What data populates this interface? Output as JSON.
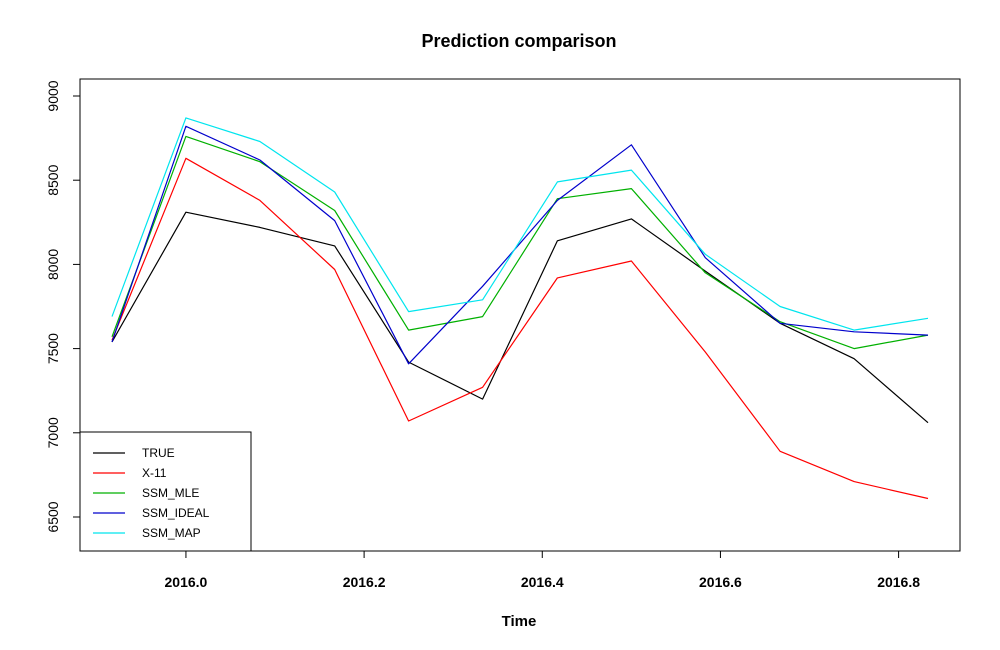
{
  "chart_data": {
    "type": "line",
    "title": "Prediction comparison",
    "xlabel": "Time",
    "ylabel": "",
    "xlim": [
      2015.917,
      2016.833
    ],
    "ylim": [
      6500,
      9000
    ],
    "x_ticks": [
      "2016.0",
      "2016.2",
      "2016.4",
      "2016.6",
      "2016.8"
    ],
    "y_ticks": [
      "6500",
      "7000",
      "7500",
      "8000",
      "8500",
      "9000"
    ],
    "grid": false,
    "legend_position": "bottom-left",
    "x": [
      2015.917,
      2016.0,
      2016.083,
      2016.167,
      2016.25,
      2016.333,
      2016.417,
      2016.5,
      2016.583,
      2016.667,
      2016.75,
      2016.833
    ],
    "series": [
      {
        "name": "TRUE",
        "color": "#000000",
        "values": [
          7540,
          8310,
          8220,
          8110,
          7420,
          7200,
          8140,
          8270,
          7960,
          7650,
          7440,
          7060
        ]
      },
      {
        "name": "X-11",
        "color": "#ff0000",
        "values": [
          7550,
          8630,
          8380,
          7970,
          7070,
          7270,
          7920,
          8020,
          7480,
          6890,
          6710,
          6610
        ]
      },
      {
        "name": "SSM_MLE",
        "color": "#00b000",
        "values": [
          7570,
          8760,
          8610,
          8320,
          7610,
          7690,
          8390,
          8450,
          7950,
          7660,
          7500,
          7580
        ]
      },
      {
        "name": "SSM_IDEAL",
        "color": "#0000cc",
        "values": [
          7540,
          8820,
          8620,
          8260,
          7410,
          7870,
          8380,
          8710,
          8040,
          7650,
          7600,
          7580
        ]
      },
      {
        "name": "SSM_MAP",
        "color": "#00e5ee",
        "values": [
          7690,
          8870,
          8730,
          8430,
          7720,
          7790,
          8490,
          8560,
          8060,
          7750,
          7610,
          7680
        ]
      }
    ]
  }
}
